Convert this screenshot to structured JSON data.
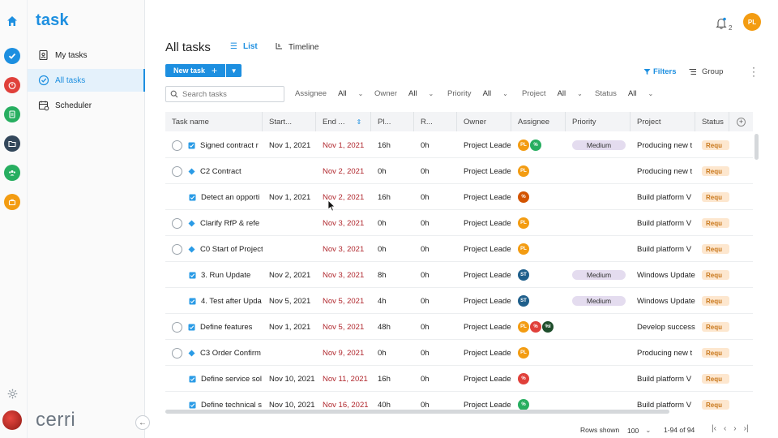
{
  "colors": {
    "accent": "#1d8fe0",
    "overdue": "#b0272d",
    "priority_medium_bg": "#e4dcef",
    "status_bg": "#fde7cf",
    "status_text": "#c9781d",
    "rail_icons": [
      "#1d8fe0",
      "#1d8fe0",
      "#e0403a",
      "#27ae60",
      "#33475b",
      "#27ae60",
      "#f39c12"
    ]
  },
  "rail": {
    "icons": [
      "home-icon",
      "check-circle-icon",
      "timer-icon",
      "document-icon",
      "folder-icon",
      "team-icon",
      "briefcase-icon",
      "gear-icon",
      "brand-avatar"
    ]
  },
  "sidebar": {
    "logo": "task",
    "items": [
      {
        "label": "My tasks",
        "icon": "user-task-icon"
      },
      {
        "label": "All tasks",
        "icon": "check-badge-icon",
        "active": true
      },
      {
        "label": "Scheduler",
        "icon": "calendar-icon"
      }
    ],
    "footer_logo": "cerri",
    "collapse_icon": "arrow-left-icon"
  },
  "header": {
    "notifications_count": "2",
    "user_initials": "PL"
  },
  "page": {
    "title": "All tasks",
    "views": [
      {
        "label": "List",
        "icon": "list-icon",
        "active": true
      },
      {
        "label": "Timeline",
        "icon": "timeline-icon"
      }
    ]
  },
  "toolbar": {
    "new_task_label": "New task",
    "filters_label": "Filters",
    "group_label": "Group"
  },
  "search": {
    "placeholder": "Search tasks",
    "value": ""
  },
  "filters": [
    {
      "label": "Assignee",
      "value": "All"
    },
    {
      "label": "Owner",
      "value": "All"
    },
    {
      "label": "Priority",
      "value": "All"
    },
    {
      "label": "Project",
      "value": "All"
    },
    {
      "label": "Status",
      "value": "All"
    }
  ],
  "table": {
    "columns": [
      "Task name",
      "Start...",
      "End ...",
      "Pl...",
      "R...",
      "Owner",
      "Assignee",
      "Priority",
      "Project",
      "Status"
    ],
    "rows": [
      {
        "kind": "task",
        "milestone": false,
        "name": "Signed contract r",
        "start": "Nov 1, 2021",
        "end": "Nov 1, 2021",
        "planned": "16h",
        "remaining": "0h",
        "owner": "Project Leade",
        "assignees": [
          {
            "t": "PL",
            "c": "#f39c12"
          },
          {
            "t": "%",
            "c": "#27ae60"
          }
        ],
        "priority": "Medium",
        "project": "Producing new t",
        "status": "Requ"
      },
      {
        "kind": "task",
        "milestone": true,
        "name": "C2 Contract",
        "start": "",
        "end": "Nov 2, 2021",
        "planned": "0h",
        "remaining": "0h",
        "owner": "Project Leade",
        "assignees": [
          {
            "t": "PL",
            "c": "#f39c12"
          }
        ],
        "priority": "",
        "project": "Producing new t",
        "status": "Requ"
      },
      {
        "kind": "sub",
        "milestone": false,
        "name": "Detect an opporti",
        "start": "Nov 1, 2021",
        "end": "Nov 2, 2021",
        "planned": "16h",
        "remaining": "0h",
        "owner": "Project Leade",
        "assignees": [
          {
            "t": "%",
            "c": "#d35400"
          }
        ],
        "priority": "",
        "project": "Build platform V",
        "status": "Requ"
      },
      {
        "kind": "task",
        "milestone": true,
        "name": "Clarify RfP & refe",
        "start": "",
        "end": "Nov 3, 2021",
        "planned": "0h",
        "remaining": "0h",
        "owner": "Project Leade",
        "assignees": [
          {
            "t": "PL",
            "c": "#f39c12"
          }
        ],
        "priority": "",
        "project": "Build platform V",
        "status": "Requ"
      },
      {
        "kind": "task",
        "milestone": true,
        "name": "C0 Start of Project",
        "start": "",
        "end": "Nov 3, 2021",
        "planned": "0h",
        "remaining": "0h",
        "owner": "Project Leade",
        "assignees": [
          {
            "t": "PL",
            "c": "#f39c12"
          }
        ],
        "priority": "",
        "project": "Build platform V",
        "status": "Requ"
      },
      {
        "kind": "sub",
        "milestone": false,
        "name": "3. Run Update",
        "start": "Nov 2, 2021",
        "end": "Nov 3, 2021",
        "planned": "8h",
        "remaining": "0h",
        "owner": "Project Leade",
        "assignees": [
          {
            "t": "ST",
            "c": "#1f5f8b"
          }
        ],
        "priority": "Medium",
        "project": "Windows Update",
        "status": "Requ"
      },
      {
        "kind": "sub",
        "milestone": false,
        "name": "4. Test after Upda",
        "start": "Nov 5, 2021",
        "end": "Nov 5, 2021",
        "planned": "4h",
        "remaining": "0h",
        "owner": "Project Leade",
        "assignees": [
          {
            "t": "ST",
            "c": "#1f5f8b"
          }
        ],
        "priority": "Medium",
        "project": "Windows Update",
        "status": "Requ"
      },
      {
        "kind": "task",
        "milestone": false,
        "name": "Define features",
        "start": "Nov 1, 2021",
        "end": "Nov 5, 2021",
        "planned": "48h",
        "remaining": "0h",
        "owner": "Project Leade",
        "assignees": [
          {
            "t": "PL",
            "c": "#f39c12"
          },
          {
            "t": "%",
            "c": "#e0403a"
          },
          {
            "t": "%I",
            "c": "#1e4d2b"
          }
        ],
        "priority": "",
        "project": "Develop success",
        "status": "Requ"
      },
      {
        "kind": "task",
        "milestone": true,
        "name": "C3 Order Confirm",
        "start": "",
        "end": "Nov 9, 2021",
        "planned": "0h",
        "remaining": "0h",
        "owner": "Project Leade",
        "assignees": [
          {
            "t": "PL",
            "c": "#f39c12"
          }
        ],
        "priority": "",
        "project": "Producing new t",
        "status": "Requ"
      },
      {
        "kind": "sub",
        "milestone": false,
        "name": "Define service sol",
        "start": "Nov 10, 2021",
        "end": "Nov 11, 2021",
        "planned": "16h",
        "remaining": "0h",
        "owner": "Project Leade",
        "assignees": [
          {
            "t": "%",
            "c": "#e0403a"
          }
        ],
        "priority": "",
        "project": "Build platform V",
        "status": "Requ"
      },
      {
        "kind": "sub",
        "milestone": false,
        "name": "Define technical s",
        "start": "Nov 10, 2021",
        "end": "Nov 16, 2021",
        "planned": "40h",
        "remaining": "0h",
        "owner": "Project Leade",
        "assignees": [
          {
            "t": "%",
            "c": "#27ae60"
          }
        ],
        "priority": "",
        "project": "Build platform V",
        "status": "Requ"
      }
    ]
  },
  "footer": {
    "rows_shown_label": "Rows shown",
    "rows_shown_value": "100",
    "range": "1-94 of 94"
  }
}
